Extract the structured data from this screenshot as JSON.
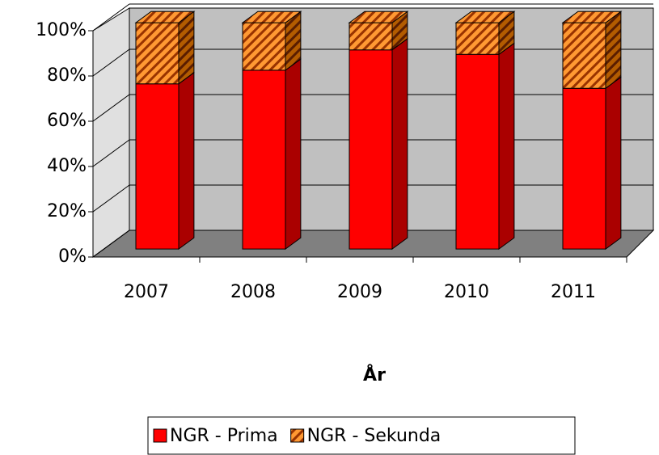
{
  "chart_data": {
    "type": "bar3d_stacked",
    "x_label": "År",
    "categories": [
      "2007",
      "2008",
      "2009",
      "2010",
      "2011"
    ],
    "series": [
      {
        "name": "NGR - Prima",
        "color": "#ff0000",
        "values": [
          73,
          79,
          88,
          86,
          71
        ]
      },
      {
        "name": "NGR - Sekunda",
        "color": "#ff9933",
        "values": [
          27,
          21,
          12,
          14,
          29
        ]
      }
    ],
    "ylim": [
      0,
      100
    ],
    "yticks": [
      {
        "value": 0,
        "label": "0%"
      },
      {
        "value": 20,
        "label": "20%"
      },
      {
        "value": 40,
        "label": "40%"
      },
      {
        "value": 60,
        "label": "60%"
      },
      {
        "value": 80,
        "label": "80%"
      },
      {
        "value": 100,
        "label": "100%"
      }
    ],
    "grid": true,
    "legend": "bottom"
  }
}
